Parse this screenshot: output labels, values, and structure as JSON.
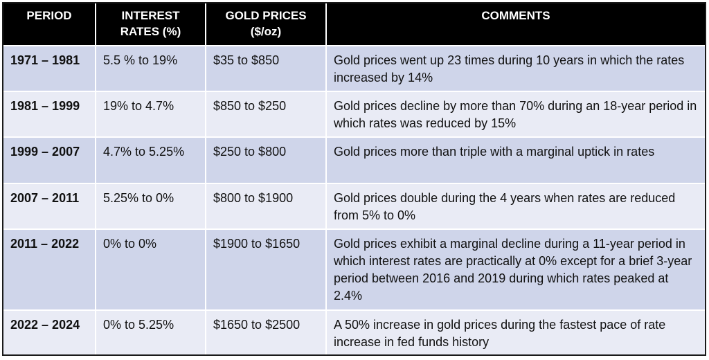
{
  "headers": {
    "period": "PERIOD",
    "rates_line1": "INTEREST",
    "rates_line2": "RATES (%)",
    "gold_line1": "GOLD PRICES",
    "gold_line2": "($/oz)",
    "comments": "COMMENTS"
  },
  "rows": [
    {
      "period": "1971 – 1981",
      "rates": "5.5 % to 19%",
      "gold": "$35 to $850",
      "comment": "Gold prices went up 23 times during 10 years in which the rates increased by 14%"
    },
    {
      "period": "1981 – 1999",
      "rates": "19% to 4.7%",
      "gold": "$850 to $250",
      "comment": "Gold prices decline by more than 70% during an 18-year period in which rates was reduced by 15%"
    },
    {
      "period": "1999 – 2007",
      "rates": "4.7% to 5.25%",
      "gold": "$250 to $800",
      "comment": "Gold prices more than triple with a marginal uptick in rates"
    },
    {
      "period": "2007 – 2011",
      "rates": "5.25% to 0%",
      "gold": "$800 to $1900",
      "comment": "Gold prices double during the 4 years when rates are reduced from 5% to 0%"
    },
    {
      "period": "2011 – 2022",
      "rates": "0% to 0%",
      "gold": "$1900 to $1650",
      "comment": "Gold prices exhibit a marginal decline during a 11-year period in which interest rates are practically at 0% except for a brief 3-year period between 2016 and 2019 during which rates peaked at 2.4%"
    },
    {
      "period": "2022 – 2024",
      "rates": "0% to 5.25%",
      "gold": "$1650 to $2500",
      "comment": "A 50% increase in gold prices during the fastest pace of rate increase in fed funds history"
    }
  ]
}
